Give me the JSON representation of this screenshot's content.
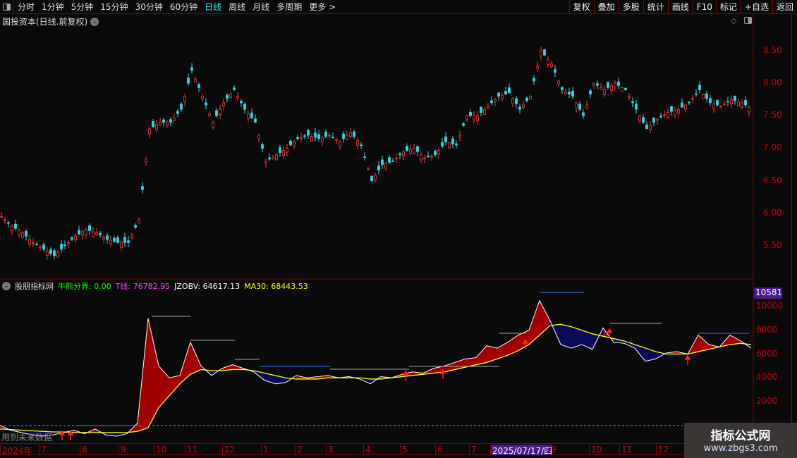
{
  "toolbar": {
    "periods": [
      "分时",
      "1分钟",
      "5分钟",
      "15分钟",
      "30分钟",
      "60分钟",
      "日线",
      "周线",
      "月线",
      "多周期",
      "更多 >"
    ],
    "active": "日线",
    "actions": [
      "复权",
      "叠加",
      "多股",
      "统计",
      "画线",
      "F10",
      "标记",
      "+自选",
      "返回"
    ]
  },
  "price_panel": {
    "title": "国投资本(日线.前复权)",
    "y_ticks": [
      "8.50",
      "8.00",
      "7.50",
      "7.00",
      "6.50",
      "6.00",
      "5.50"
    ]
  },
  "indicator": {
    "name": "股朋指标网",
    "bull_bear_label": "牛熊分界: 0.00",
    "t_line_label": "T线: 76782.95",
    "jzobv_label": "JZOBV: 64617.13",
    "ma30_label": "MA30: 68443.53",
    "current_badge": "10581",
    "y_ticks": [
      "10000",
      "8000",
      "6000",
      "4000",
      "2000"
    ],
    "future_note": "用到未来数据",
    "colors": {
      "bull_bear": "#00ff00",
      "t_line": "#ff44ff",
      "jzobv": "#ffffff",
      "ma30": "#ffff00",
      "above_fill": "#a00000",
      "below_fill": "#0a0a5a"
    }
  },
  "xaxis": {
    "labels": [
      "2024年",
      "7",
      "8",
      "9",
      "10",
      "11",
      "12",
      "1",
      "2",
      "3",
      "4",
      "5",
      "6",
      "7",
      "2025/07/17/四",
      "9",
      "10",
      "11",
      "12"
    ]
  },
  "watermark": {
    "name": "指标公式网",
    "url": "www.zbgs3.com"
  },
  "chart_data": {
    "type": "line",
    "price_close": [
      5.95,
      5.8,
      5.7,
      5.55,
      5.45,
      5.35,
      5.5,
      5.65,
      5.75,
      5.7,
      5.6,
      5.55,
      5.55,
      5.9,
      7.3,
      7.4,
      7.4,
      7.6,
      8.2,
      7.8,
      7.4,
      7.7,
      7.9,
      7.6,
      7.4,
      6.8,
      6.9,
      7.0,
      7.15,
      7.2,
      7.15,
      7.2,
      7.1,
      7.25,
      7.05,
      6.5,
      6.75,
      6.8,
      6.95,
      7.0,
      6.85,
      6.9,
      7.1,
      7.05,
      7.5,
      7.5,
      7.65,
      7.8,
      7.85,
      7.6,
      7.8,
      8.5,
      8.3,
      7.9,
      7.8,
      7.5,
      8.0,
      7.9,
      8.0,
      7.9,
      7.6,
      7.3,
      7.45,
      7.55,
      7.6,
      7.7,
      7.9,
      7.7,
      7.65,
      7.75,
      7.7,
      7.6
    ],
    "jzobv": [
      0,
      -400,
      -600,
      -800,
      -900,
      -800,
      -600,
      -400,
      -700,
      -300,
      -800,
      -900,
      -700,
      200,
      9000,
      5000,
      4000,
      4200,
      7000,
      5000,
      4200,
      4800,
      5100,
      4800,
      4500,
      3800,
      3500,
      3600,
      4200,
      4000,
      4100,
      4200,
      4000,
      4100,
      3900,
      3500,
      4100,
      4000,
      4300,
      4500,
      4400,
      4800,
      5000,
      5300,
      5600,
      5700,
      6700,
      6500,
      7000,
      7600,
      8000,
      10500,
      8800,
      6800,
      6500,
      6800,
      6400,
      8200,
      7000,
      6900,
      6500,
      5400,
      5600,
      6100,
      6200,
      6000,
      7600,
      6800,
      6600,
      7600,
      7100,
      6500
    ],
    "ma30": [
      -300,
      -350,
      -400,
      -450,
      -500,
      -550,
      -550,
      -600,
      -600,
      -600,
      -600,
      -600,
      -600,
      -500,
      -200,
      1500,
      2500,
      3500,
      4300,
      4700,
      4600,
      4600,
      4700,
      4700,
      4600,
      4400,
      4200,
      4000,
      3900,
      3900,
      3900,
      4000,
      4000,
      4000,
      4000,
      3900,
      3900,
      4000,
      4100,
      4200,
      4300,
      4400,
      4500,
      4700,
      4900,
      5100,
      5300,
      5600,
      5900,
      6300,
      6800,
      7600,
      8400,
      8500,
      8300,
      8000,
      7700,
      7500,
      7300,
      7100,
      6800,
      6500,
      6200,
      6000,
      6000,
      6000,
      6200,
      6400,
      6600,
      6800,
      6900,
      6800
    ],
    "price_range": [
      5.2,
      8.9
    ],
    "indicator_range": [
      -1000,
      11500
    ]
  }
}
